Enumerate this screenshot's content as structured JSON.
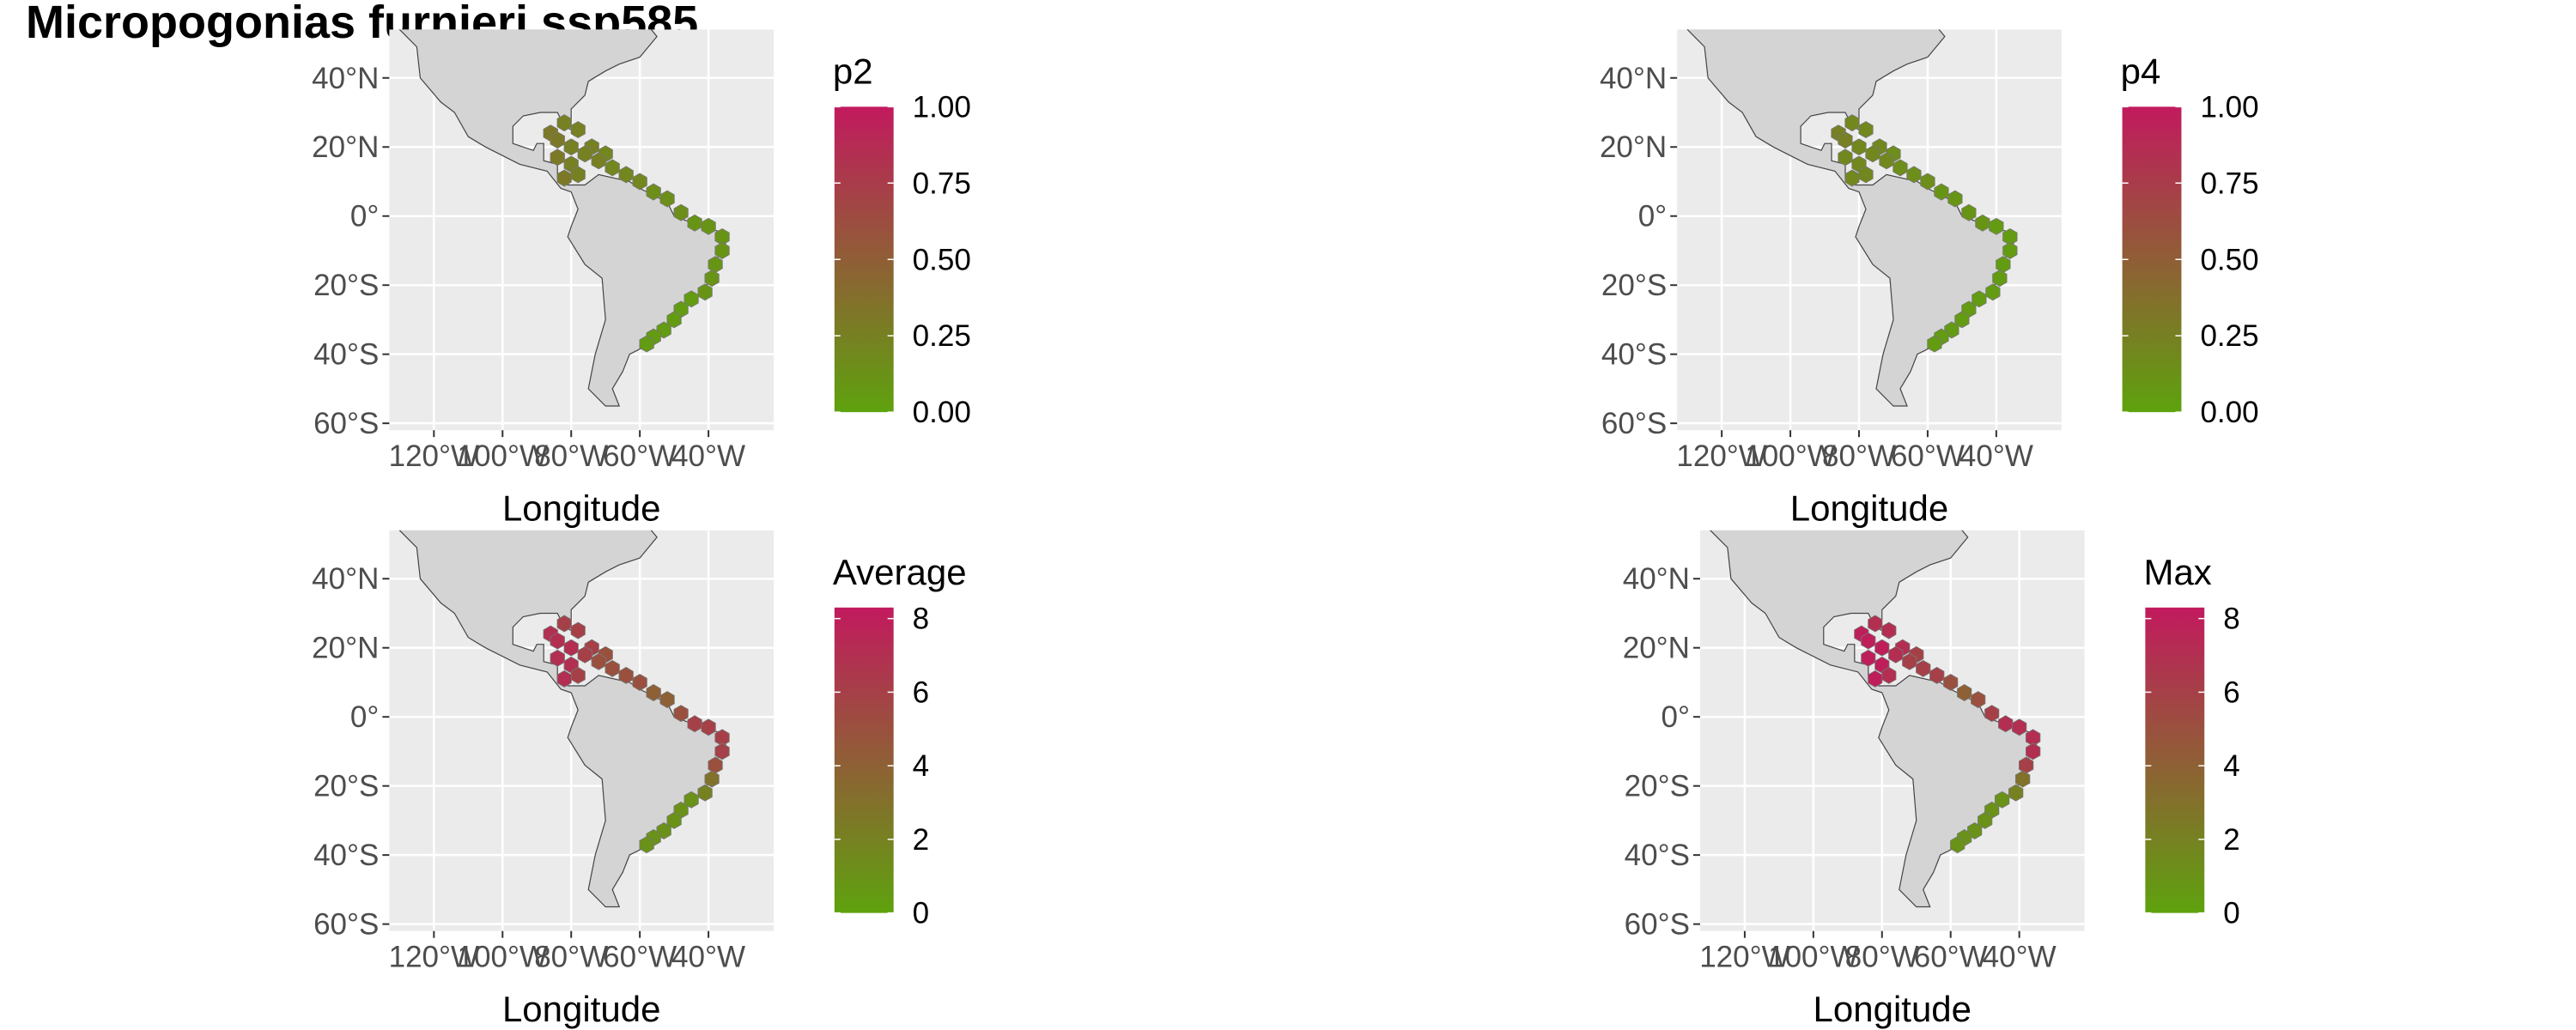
{
  "title": "Micropogonias furnieri ssp585",
  "chart_data": [
    {
      "type": "map",
      "legend_title": "p2",
      "xlabel": "Longitude",
      "xlim": [
        -133,
        -21
      ],
      "ylim": [
        -62,
        54
      ],
      "xticks": [
        {
          "value": -120,
          "label": "120°W"
        },
        {
          "value": -100,
          "label": "100°W"
        },
        {
          "value": -80,
          "label": "80°W"
        },
        {
          "value": -60,
          "label": "60°W"
        },
        {
          "value": -40,
          "label": "40°W"
        }
      ],
      "yticks": [
        {
          "value": 40,
          "label": "40°N"
        },
        {
          "value": 20,
          "label": "20°N"
        },
        {
          "value": 0,
          "label": "0°"
        },
        {
          "value": -20,
          "label": "20°S"
        },
        {
          "value": -40,
          "label": "40°S"
        },
        {
          "value": -60,
          "label": "60°S"
        }
      ],
      "color_low": "#5ea20e",
      "color_high": "#c21a5e",
      "colorbar_lim": [
        0,
        1
      ],
      "colorbar_ticks": [
        {
          "value": 0,
          "label": "0.00"
        },
        {
          "value": 0.25,
          "label": "0.25"
        },
        {
          "value": 0.5,
          "label": "0.50"
        },
        {
          "value": 0.75,
          "label": "0.75"
        },
        {
          "value": 1,
          "label": "1.00"
        }
      ],
      "x": [
        -82,
        -78,
        -86,
        -84,
        -80,
        -74,
        -76,
        -70,
        -84,
        -80,
        -72,
        -78,
        -82,
        -68,
        -64,
        -60,
        -56,
        -52,
        -48,
        -44,
        -40,
        -36,
        -36,
        -38,
        -39,
        -41,
        -45,
        -48,
        -50,
        -53,
        -56,
        -58
      ],
      "y": [
        27,
        25,
        24,
        22,
        20,
        20,
        18,
        18,
        17,
        15,
        16,
        12,
        11,
        14,
        12,
        10,
        7,
        5,
        1,
        -2,
        -3,
        -6,
        -10,
        -14,
        -18,
        -22,
        -24,
        -27,
        -30,
        -33,
        -35,
        -37
      ],
      "values": [
        0.25,
        0.25,
        0.3,
        0.3,
        0.25,
        0.25,
        0.25,
        0.2,
        0.3,
        0.25,
        0.25,
        0.25,
        0.3,
        0.2,
        0.2,
        0.2,
        0.15,
        0.15,
        0.15,
        0.1,
        0.1,
        0.1,
        0.1,
        0.1,
        0.1,
        0.1,
        0.05,
        0.05,
        0.05,
        0.05,
        0.05,
        0.05
      ]
    },
    {
      "type": "map",
      "legend_title": "p4",
      "xlabel": "Longitude",
      "xlim": [
        -133,
        -21
      ],
      "ylim": [
        -62,
        54
      ],
      "xticks": [
        {
          "value": -120,
          "label": "120°W"
        },
        {
          "value": -100,
          "label": "100°W"
        },
        {
          "value": -80,
          "label": "80°W"
        },
        {
          "value": -60,
          "label": "60°W"
        },
        {
          "value": -40,
          "label": "40°W"
        }
      ],
      "yticks": [
        {
          "value": 40,
          "label": "40°N"
        },
        {
          "value": 20,
          "label": "20°N"
        },
        {
          "value": 0,
          "label": "0°"
        },
        {
          "value": -20,
          "label": "20°S"
        },
        {
          "value": -40,
          "label": "40°S"
        },
        {
          "value": -60,
          "label": "60°S"
        }
      ],
      "color_low": "#5ea20e",
      "color_high": "#c21a5e",
      "colorbar_lim": [
        0,
        1
      ],
      "colorbar_ticks": [
        {
          "value": 0,
          "label": "0.00"
        },
        {
          "value": 0.25,
          "label": "0.25"
        },
        {
          "value": 0.5,
          "label": "0.50"
        },
        {
          "value": 0.75,
          "label": "0.75"
        },
        {
          "value": 1,
          "label": "1.00"
        }
      ],
      "x": [
        -82,
        -78,
        -86,
        -84,
        -80,
        -74,
        -76,
        -70,
        -84,
        -80,
        -72,
        -78,
        -82,
        -68,
        -64,
        -60,
        -56,
        -52,
        -48,
        -44,
        -40,
        -36,
        -36,
        -38,
        -39,
        -41,
        -45,
        -48,
        -50,
        -53,
        -56,
        -58
      ],
      "y": [
        27,
        25,
        24,
        22,
        20,
        20,
        18,
        18,
        17,
        15,
        16,
        12,
        11,
        14,
        12,
        10,
        7,
        5,
        1,
        -2,
        -3,
        -6,
        -10,
        -14,
        -18,
        -22,
        -24,
        -27,
        -30,
        -33,
        -35,
        -37
      ],
      "values": [
        0.2,
        0.2,
        0.25,
        0.25,
        0.2,
        0.2,
        0.2,
        0.15,
        0.2,
        0.2,
        0.2,
        0.2,
        0.2,
        0.15,
        0.15,
        0.15,
        0.1,
        0.1,
        0.1,
        0.1,
        0.05,
        0.05,
        0.05,
        0.05,
        0.05,
        0.05,
        0.05,
        0.05,
        0.05,
        0.05,
        0.05,
        0.05
      ]
    },
    {
      "type": "map",
      "legend_title": "Average",
      "xlabel": "Longitude",
      "xlim": [
        -133,
        -21
      ],
      "ylim": [
        -62,
        54
      ],
      "xticks": [
        {
          "value": -120,
          "label": "120°W"
        },
        {
          "value": -100,
          "label": "100°W"
        },
        {
          "value": -80,
          "label": "80°W"
        },
        {
          "value": -60,
          "label": "60°W"
        },
        {
          "value": -40,
          "label": "40°W"
        }
      ],
      "yticks": [
        {
          "value": 40,
          "label": "40°N"
        },
        {
          "value": 20,
          "label": "20°N"
        },
        {
          "value": 0,
          "label": "0°"
        },
        {
          "value": -20,
          "label": "20°S"
        },
        {
          "value": -40,
          "label": "40°S"
        },
        {
          "value": -60,
          "label": "60°S"
        }
      ],
      "color_low": "#5ea20e",
      "color_high": "#c21a5e",
      "colorbar_lim": [
        0,
        8.3
      ],
      "colorbar_ticks": [
        0,
        2,
        4,
        6,
        8
      ],
      "x": [
        -82,
        -78,
        -86,
        -84,
        -80,
        -74,
        -76,
        -70,
        -84,
        -80,
        -72,
        -78,
        -82,
        -68,
        -64,
        -60,
        -56,
        -52,
        -48,
        -44,
        -40,
        -36,
        -36,
        -38,
        -39,
        -41,
        -45,
        -48,
        -50,
        -53,
        -56,
        -58
      ],
      "y": [
        27,
        25,
        24,
        22,
        20,
        20,
        18,
        18,
        17,
        15,
        16,
        12,
        11,
        14,
        12,
        10,
        7,
        5,
        1,
        -2,
        -3,
        -6,
        -10,
        -14,
        -18,
        -22,
        -24,
        -27,
        -30,
        -33,
        -35,
        -37
      ],
      "values": [
        6,
        6,
        7,
        7,
        7,
        6,
        6,
        5,
        7,
        7,
        5,
        6,
        7,
        5,
        5,
        5,
        4,
        4,
        5,
        6,
        6,
        6,
        6,
        5,
        3,
        2,
        1,
        1,
        1,
        1,
        1,
        1
      ]
    },
    {
      "type": "map",
      "legend_title": "Max",
      "xlabel": "Longitude",
      "xlim": [
        -133,
        -21
      ],
      "ylim": [
        -62,
        54
      ],
      "xticks": [
        {
          "value": -120,
          "label": "120°W"
        },
        {
          "value": -100,
          "label": "100°W"
        },
        {
          "value": -80,
          "label": "80°W"
        },
        {
          "value": -60,
          "label": "60°W"
        },
        {
          "value": -40,
          "label": "40°W"
        }
      ],
      "yticks": [
        {
          "value": 40,
          "label": "40°N"
        },
        {
          "value": 20,
          "label": "20°N"
        },
        {
          "value": 0,
          "label": "0°"
        },
        {
          "value": -20,
          "label": "20°S"
        },
        {
          "value": -40,
          "label": "40°S"
        },
        {
          "value": -60,
          "label": "60°S"
        }
      ],
      "color_low": "#5ea20e",
      "color_high": "#c21a5e",
      "colorbar_lim": [
        0,
        8.3
      ],
      "colorbar_ticks": [
        0,
        2,
        4,
        6,
        8
      ],
      "x": [
        -82,
        -78,
        -86,
        -84,
        -80,
        -74,
        -76,
        -70,
        -84,
        -80,
        -72,
        -78,
        -82,
        -68,
        -64,
        -60,
        -56,
        -52,
        -48,
        -44,
        -40,
        -36,
        -36,
        -38,
        -39,
        -41,
        -45,
        -48,
        -50,
        -53,
        -56,
        -58
      ],
      "y": [
        27,
        25,
        24,
        22,
        20,
        20,
        18,
        18,
        17,
        15,
        16,
        12,
        11,
        14,
        12,
        10,
        7,
        5,
        1,
        -2,
        -3,
        -6,
        -10,
        -14,
        -18,
        -22,
        -24,
        -27,
        -30,
        -33,
        -35,
        -37
      ],
      "values": [
        7,
        7,
        8,
        8,
        8,
        7,
        7,
        6,
        8,
        8,
        6,
        7,
        8,
        6,
        6,
        5,
        4,
        5,
        6,
        7,
        7,
        7,
        7,
        6,
        3,
        2,
        1,
        1,
        1,
        1,
        1,
        1
      ]
    }
  ]
}
